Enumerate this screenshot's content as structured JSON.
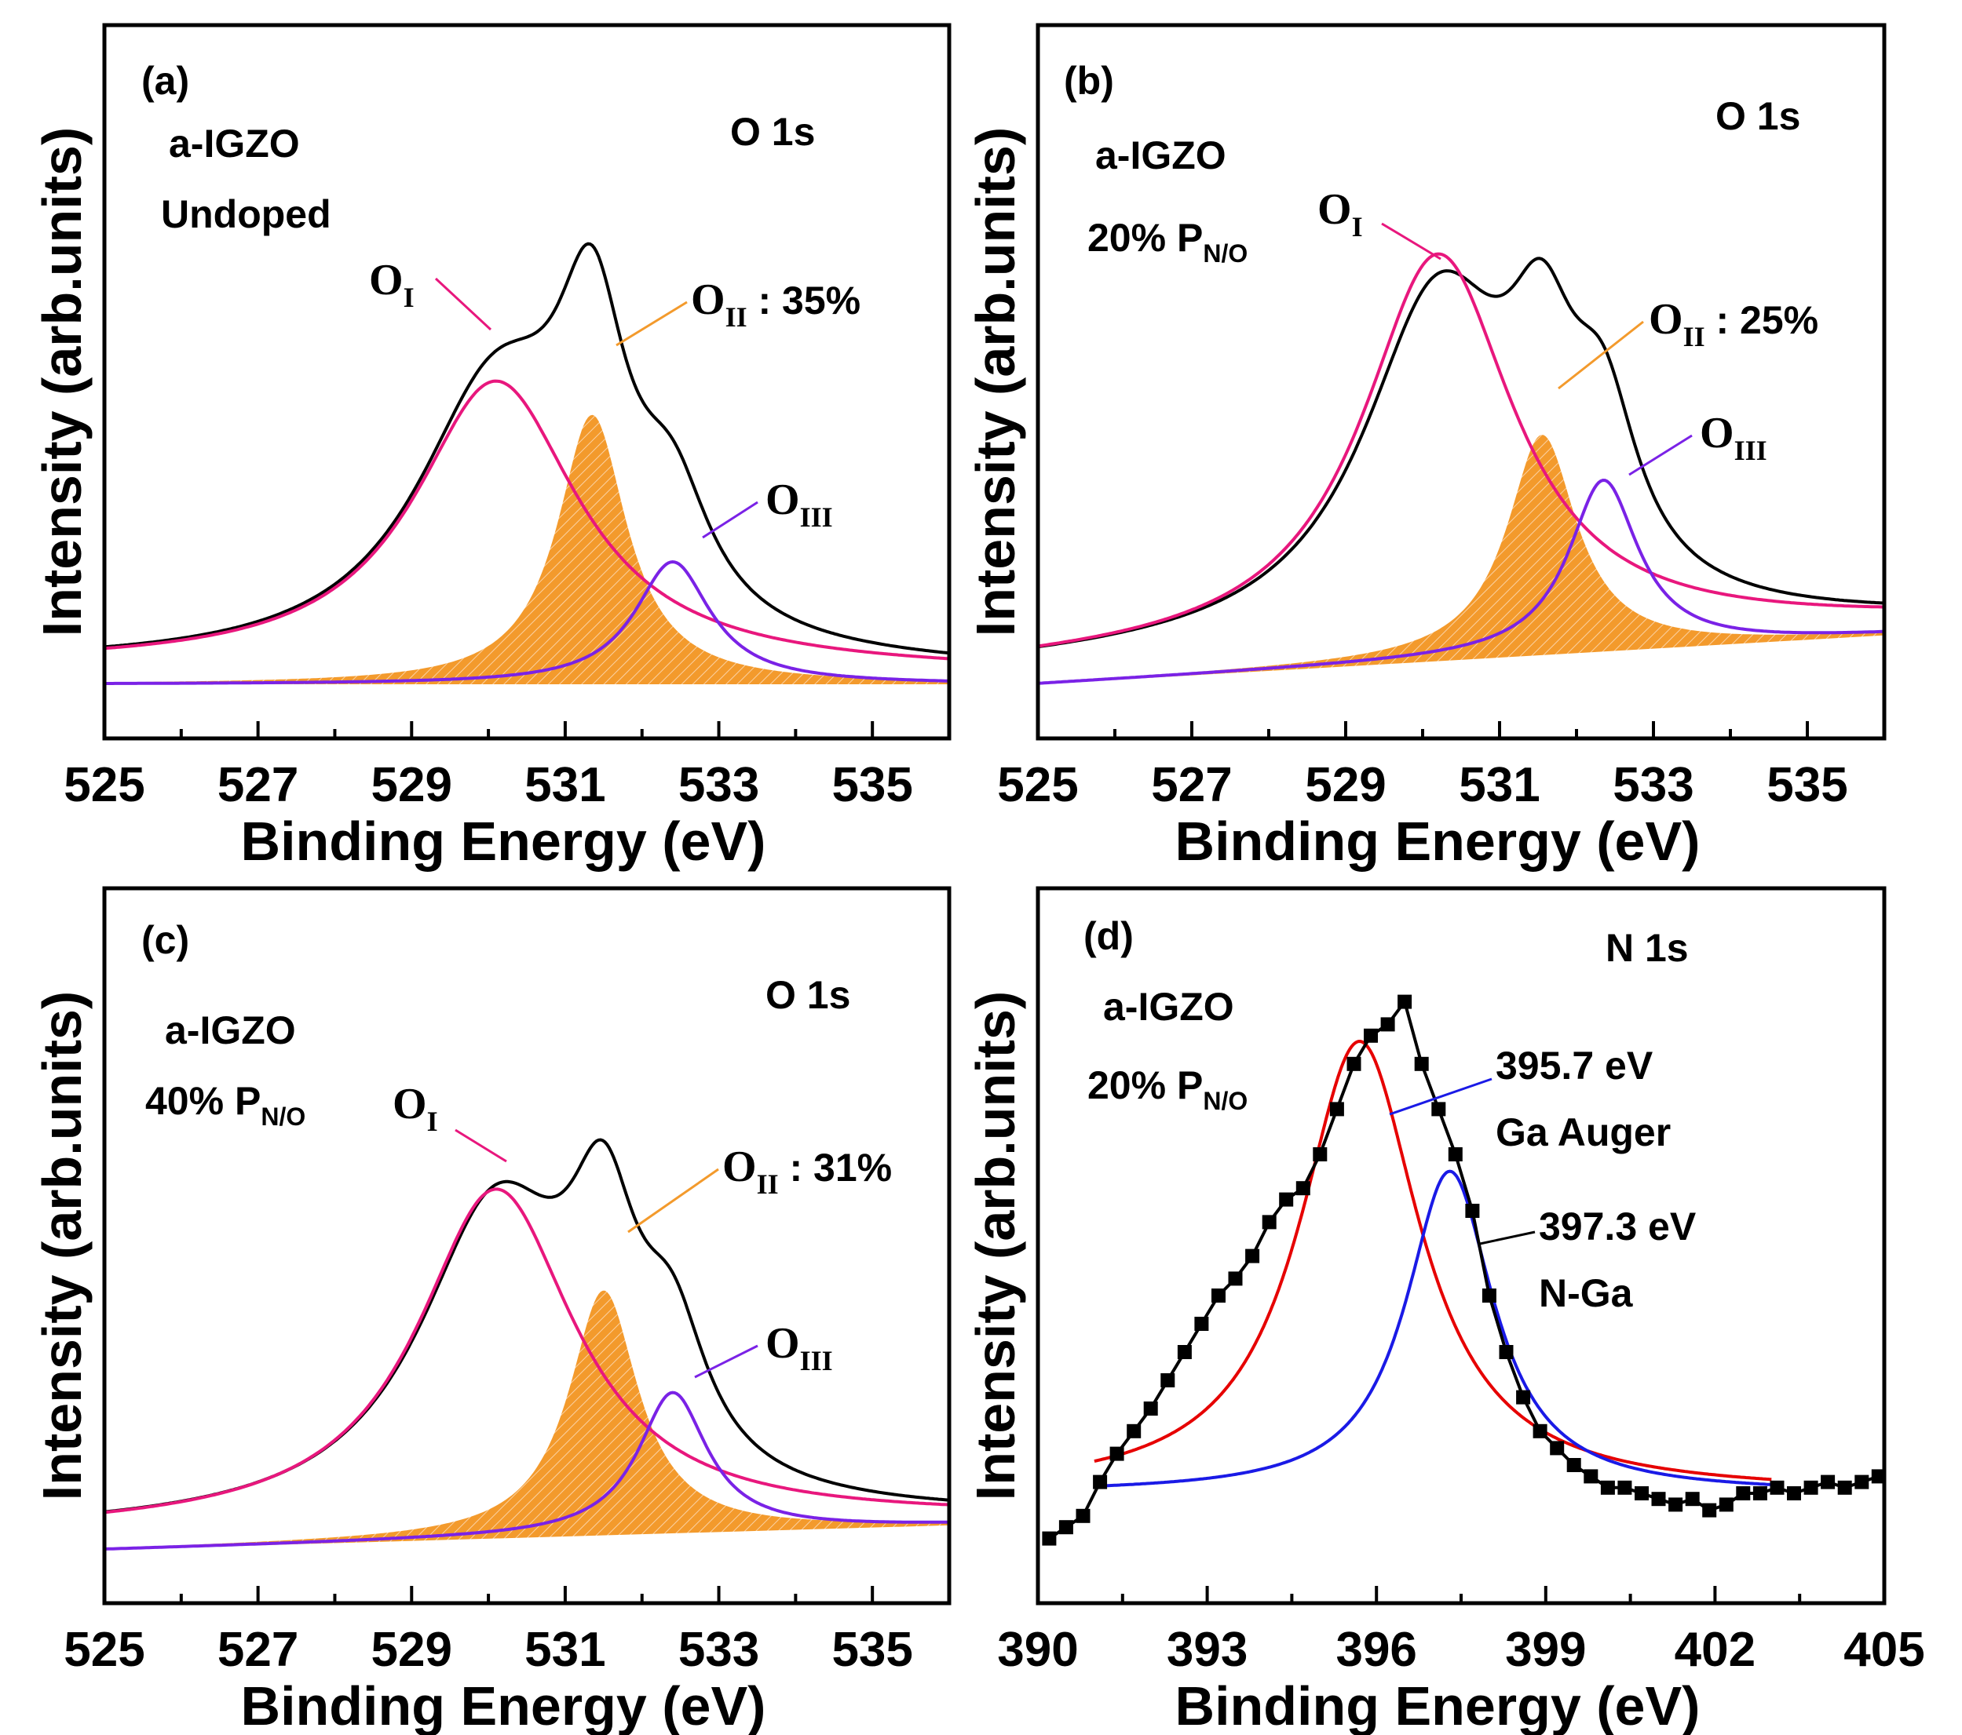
{
  "chart_data": [
    {
      "type": "line",
      "panel_label": "(a)",
      "xlabel": "Binding Energy (eV)",
      "ylabel": "Intensity (arb.units)",
      "xlim": [
        525,
        536
      ],
      "ylim": [
        0,
        1
      ],
      "x_ticks": [
        "525",
        "527",
        "529",
        "531",
        "533",
        "535"
      ],
      "core_level": "O 1s",
      "sample": [
        "a-IGZO",
        "Undoped"
      ],
      "peak_labels": [
        {
          "main": "O",
          "sub": "I",
          "suffix": ""
        },
        {
          "main": "O",
          "sub": "II",
          "suffix": " : 35%"
        },
        {
          "main": "O",
          "sub": "III",
          "suffix": ""
        }
      ],
      "series": [
        {
          "name": "Envelope",
          "color": "#000000",
          "baseline": [
            0.03,
            0.02
          ],
          "peaks": [
            {
              "center": 530.1,
              "height": 0.44,
              "width": 1.3
            },
            {
              "center": 531.35,
              "height": 0.42,
              "width": 0.55
            },
            {
              "center": 532.4,
              "height": 0.18,
              "width": 0.6
            }
          ]
        },
        {
          "name": "O_I",
          "color": "#e8177d",
          "baseline": [
            0.03,
            0.02
          ],
          "peaks": [
            {
              "center": 530.1,
              "height": 0.47,
              "width": 1.3
            }
          ]
        },
        {
          "name": "O_II",
          "color": "#f39a2c",
          "fill": true,
          "baseline": [
            0.0,
            0.0
          ],
          "peaks": [
            {
              "center": 531.35,
              "height": 0.44,
              "width": 0.55
            }
          ]
        },
        {
          "name": "O_III",
          "color": "#7a22e6",
          "baseline": [
            0.0,
            0.0
          ],
          "peaks": [
            {
              "center": 532.4,
              "height": 0.2,
              "width": 0.6
            }
          ]
        }
      ]
    },
    {
      "type": "line",
      "panel_label": "(b)",
      "xlabel": "Binding Energy (eV)",
      "ylabel": "Intensity (arb.units)",
      "xlim": [
        525,
        536
      ],
      "ylim": [
        0,
        1
      ],
      "x_ticks": [
        "525",
        "527",
        "529",
        "531",
        "533",
        "535"
      ],
      "core_level": "O 1s",
      "sample": [
        "a-IGZO",
        "20% P",
        "N/O"
      ],
      "peak_labels": [
        {
          "main": "O",
          "sub": "I",
          "suffix": ""
        },
        {
          "main": "O",
          "sub": "II",
          "suffix": " : 25%"
        },
        {
          "main": "O",
          "sub": "III",
          "suffix": ""
        }
      ],
      "series": [
        {
          "name": "Envelope",
          "color": "#000000",
          "baseline": [
            0.03,
            0.1
          ],
          "peaks": [
            {
              "center": 530.2,
              "height": 0.55,
              "width": 1.2
            },
            {
              "center": 531.55,
              "height": 0.3,
              "width": 0.55
            },
            {
              "center": 532.35,
              "height": 0.25,
              "width": 0.55
            }
          ]
        },
        {
          "name": "O_I",
          "color": "#e8177d",
          "baseline": [
            0.03,
            0.1
          ],
          "peaks": [
            {
              "center": 530.2,
              "height": 0.64,
              "width": 1.2
            }
          ]
        },
        {
          "name": "O_II",
          "color": "#f39a2c",
          "fill": true,
          "baseline": [
            0.0,
            0.08
          ],
          "peaks": [
            {
              "center": 531.55,
              "height": 0.36,
              "width": 0.55
            }
          ]
        },
        {
          "name": "O_III",
          "color": "#7a22e6",
          "baseline": [
            0.0,
            0.08
          ],
          "peaks": [
            {
              "center": 532.35,
              "height": 0.28,
              "width": 0.55
            }
          ]
        }
      ]
    },
    {
      "type": "line",
      "panel_label": "(c)",
      "xlabel": "Binding Energy (eV)",
      "ylabel": "Intensity (arb.units)",
      "xlim": [
        525,
        536
      ],
      "ylim": [
        0,
        1
      ],
      "x_ticks": [
        "525",
        "527",
        "529",
        "531",
        "533",
        "535"
      ],
      "core_level": "O 1s",
      "sample": [
        "a-IGZO",
        "40% P",
        "N/O"
      ],
      "peak_labels": [
        {
          "main": "O",
          "sub": "I",
          "suffix": ""
        },
        {
          "main": "O",
          "sub": "II",
          "suffix": " : 31%"
        },
        {
          "main": "O",
          "sub": "III",
          "suffix": ""
        }
      ],
      "series": [
        {
          "name": "Envelope",
          "color": "#000000",
          "baseline": [
            0.03,
            0.05
          ],
          "peaks": [
            {
              "center": 530.1,
              "height": 0.5,
              "width": 1.25
            },
            {
              "center": 531.5,
              "height": 0.35,
              "width": 0.55
            },
            {
              "center": 532.4,
              "height": 0.2,
              "width": 0.55
            }
          ]
        },
        {
          "name": "O_I",
          "color": "#e8177d",
          "baseline": [
            0.03,
            0.05
          ],
          "peaks": [
            {
              "center": 530.1,
              "height": 0.55,
              "width": 1.25
            }
          ]
        },
        {
          "name": "O_II",
          "color": "#f39a2c",
          "fill": true,
          "baseline": [
            0.0,
            0.04
          ],
          "peaks": [
            {
              "center": 531.5,
              "height": 0.4,
              "width": 0.55
            }
          ]
        },
        {
          "name": "O_III",
          "color": "#7a22e6",
          "baseline": [
            0.0,
            0.04
          ],
          "peaks": [
            {
              "center": 532.4,
              "height": 0.23,
              "width": 0.55
            }
          ]
        }
      ]
    },
    {
      "type": "scatter",
      "panel_label": "(d)",
      "xlabel": "Binding Energy (eV)",
      "ylabel": "Intensity (arb.units)",
      "xlim": [
        390,
        405
      ],
      "ylim": [
        0,
        1
      ],
      "x_ticks": [
        "390",
        "393",
        "396",
        "399",
        "402",
        "405"
      ],
      "core_level": "N 1s",
      "sample": [
        "a-IGZO",
        "20% P",
        "N/O"
      ],
      "peak_labels": [
        {
          "line1": "395.7 eV",
          "line2": "Ga Auger"
        },
        {
          "line1": "397.3 eV",
          "line2": "N-Ga"
        }
      ],
      "data_points": {
        "x": [
          390.2,
          390.5,
          390.8,
          391.1,
          391.4,
          391.7,
          392.0,
          392.3,
          392.6,
          392.9,
          393.2,
          393.5,
          393.8,
          394.1,
          394.4,
          394.7,
          395.0,
          395.3,
          395.6,
          395.9,
          396.2,
          396.5,
          396.8,
          397.1,
          397.4,
          397.7,
          398.0,
          398.3,
          398.6,
          398.9,
          399.2,
          399.5,
          399.8,
          400.1,
          400.4,
          400.7,
          401.0,
          401.3,
          401.6,
          401.9,
          402.2,
          402.5,
          402.8,
          403.1,
          403.4,
          403.7,
          404.0,
          404.3,
          404.6,
          404.9
        ],
        "y": [
          0.02,
          0.04,
          0.06,
          0.12,
          0.17,
          0.21,
          0.25,
          0.3,
          0.35,
          0.4,
          0.45,
          0.48,
          0.52,
          0.58,
          0.62,
          0.64,
          0.7,
          0.78,
          0.86,
          0.91,
          0.93,
          0.97,
          0.86,
          0.78,
          0.7,
          0.6,
          0.45,
          0.35,
          0.27,
          0.21,
          0.18,
          0.15,
          0.13,
          0.11,
          0.11,
          0.1,
          0.09,
          0.08,
          0.09,
          0.07,
          0.08,
          0.1,
          0.1,
          0.11,
          0.1,
          0.11,
          0.12,
          0.11,
          0.12,
          0.13
        ],
        "color": "#000000"
      },
      "series": [
        {
          "name": "Ga Auger fit",
          "color": "#e60000",
          "xrange": [
            391,
            403
          ],
          "baseline": [
            0.1,
            0.1
          ],
          "peaks": [
            {
              "center": 395.7,
              "height": 0.8,
              "width": 1.3
            }
          ]
        },
        {
          "name": "N-Ga fit",
          "color": "#1a1ae6",
          "xrange": [
            391,
            403
          ],
          "baseline": [
            0.1,
            0.1
          ],
          "peaks": [
            {
              "center": 397.3,
              "height": 0.57,
              "width": 0.95
            }
          ]
        }
      ]
    }
  ]
}
